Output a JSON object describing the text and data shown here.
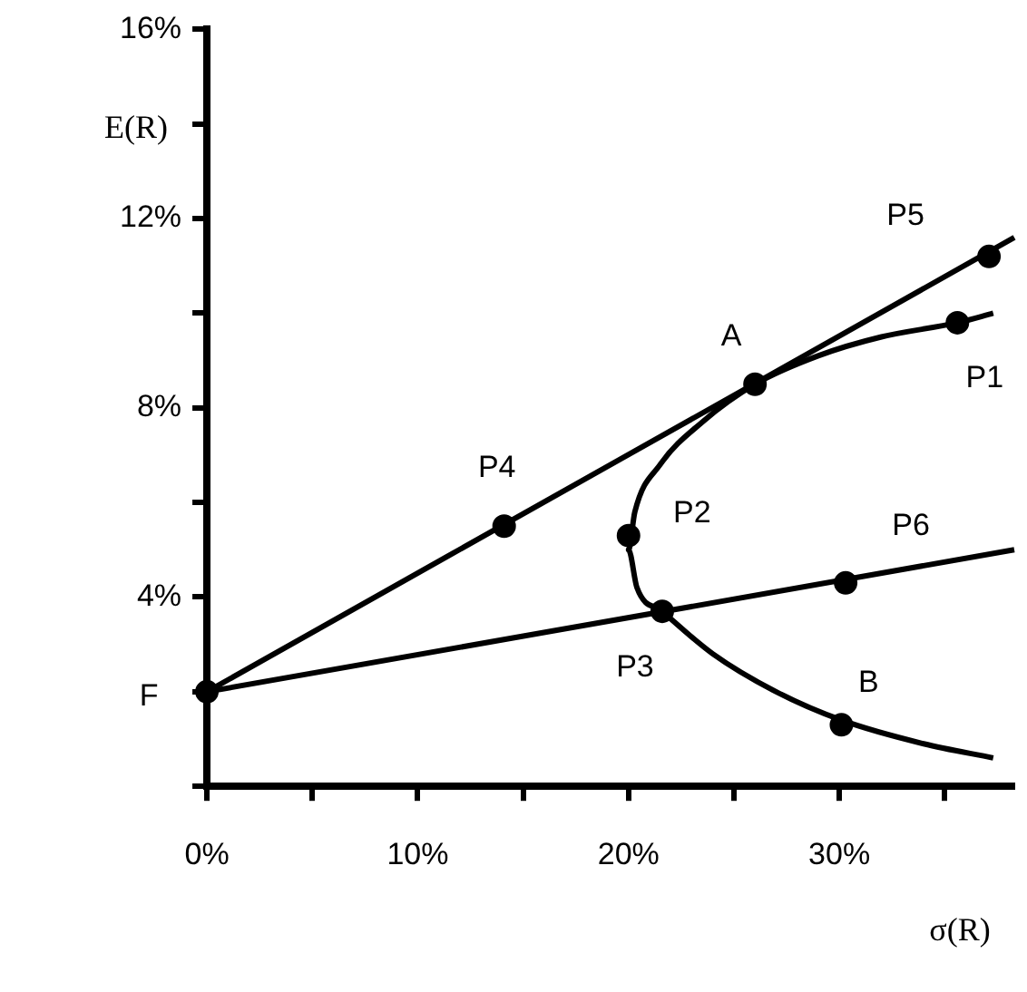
{
  "chart_data": {
    "type": "line",
    "xlabel": "σ(R)",
    "ylabel": "E(R)",
    "xlim": [
      0,
      38.3
    ],
    "ylim": [
      0,
      16
    ],
    "xticks": [
      {
        "value": 0,
        "label": "0%"
      },
      {
        "value": 5,
        "label": null
      },
      {
        "value": 10,
        "label": "10%"
      },
      {
        "value": 15,
        "label": null
      },
      {
        "value": 20,
        "label": "20%"
      },
      {
        "value": 25,
        "label": null
      },
      {
        "value": 30,
        "label": "30%"
      },
      {
        "value": 35,
        "label": null
      }
    ],
    "yticks": [
      {
        "value": 0,
        "label": null
      },
      {
        "value": 2,
        "label": null
      },
      {
        "value": 4,
        "label": "4%"
      },
      {
        "value": 6,
        "label": null
      },
      {
        "value": 8,
        "label": "8%"
      },
      {
        "value": 10,
        "label": null
      },
      {
        "value": 12,
        "label": "12%"
      },
      {
        "value": 14,
        "label": null
      },
      {
        "value": 16,
        "label": "16%"
      }
    ],
    "grid": false,
    "legend": false,
    "series": [
      {
        "type": "line",
        "color": "#000000",
        "marker": "none",
        "x": [
          37.3,
          35.6,
          32,
          29,
          26,
          23.5,
          21.5,
          20.3,
          20,
          20.4,
          21.6,
          24,
          27,
          30.1,
          34,
          37.3
        ],
        "values": [
          10.0,
          9.8,
          9.5,
          9.1,
          8.5,
          7.7,
          6.8,
          5.8,
          5.0,
          4.2,
          3.7,
          2.8,
          2.0,
          1.4,
          0.9,
          0.6
        ]
      },
      {
        "type": "line",
        "color": "#000000",
        "marker": "none",
        "x": [
          0,
          38.3
        ],
        "values": [
          2.0,
          11.6
        ]
      },
      {
        "type": "line",
        "color": "#000000",
        "marker": "none",
        "x": [
          0,
          38.3
        ],
        "values": [
          2.0,
          5.0
        ]
      },
      {
        "type": "scatter",
        "color": "#000000",
        "marker": "circle",
        "x": [
          37.1,
          26.0,
          35.6,
          14.1,
          20.0,
          30.3,
          21.6,
          0,
          30.1
        ],
        "values": [
          11.2,
          8.5,
          9.8,
          5.5,
          5.3,
          4.3,
          3.7,
          2.0,
          1.3
        ]
      }
    ],
    "annotations": [
      {
        "text": "P5",
        "x": 37.1,
        "y": 11.2
      },
      {
        "text": "A",
        "x": 26.0,
        "y": 8.5
      },
      {
        "text": "P1",
        "x": 35.6,
        "y": 9.8
      },
      {
        "text": "P4",
        "x": 14.1,
        "y": 5.5
      },
      {
        "text": "P2",
        "x": 20.0,
        "y": 5.3
      },
      {
        "text": "P6",
        "x": 30.3,
        "y": 4.3
      },
      {
        "text": "P3",
        "x": 21.6,
        "y": 3.7
      },
      {
        "text": "F",
        "x": 0,
        "y": 2.0
      },
      {
        "text": "B",
        "x": 30.1,
        "y": 1.3
      }
    ]
  }
}
